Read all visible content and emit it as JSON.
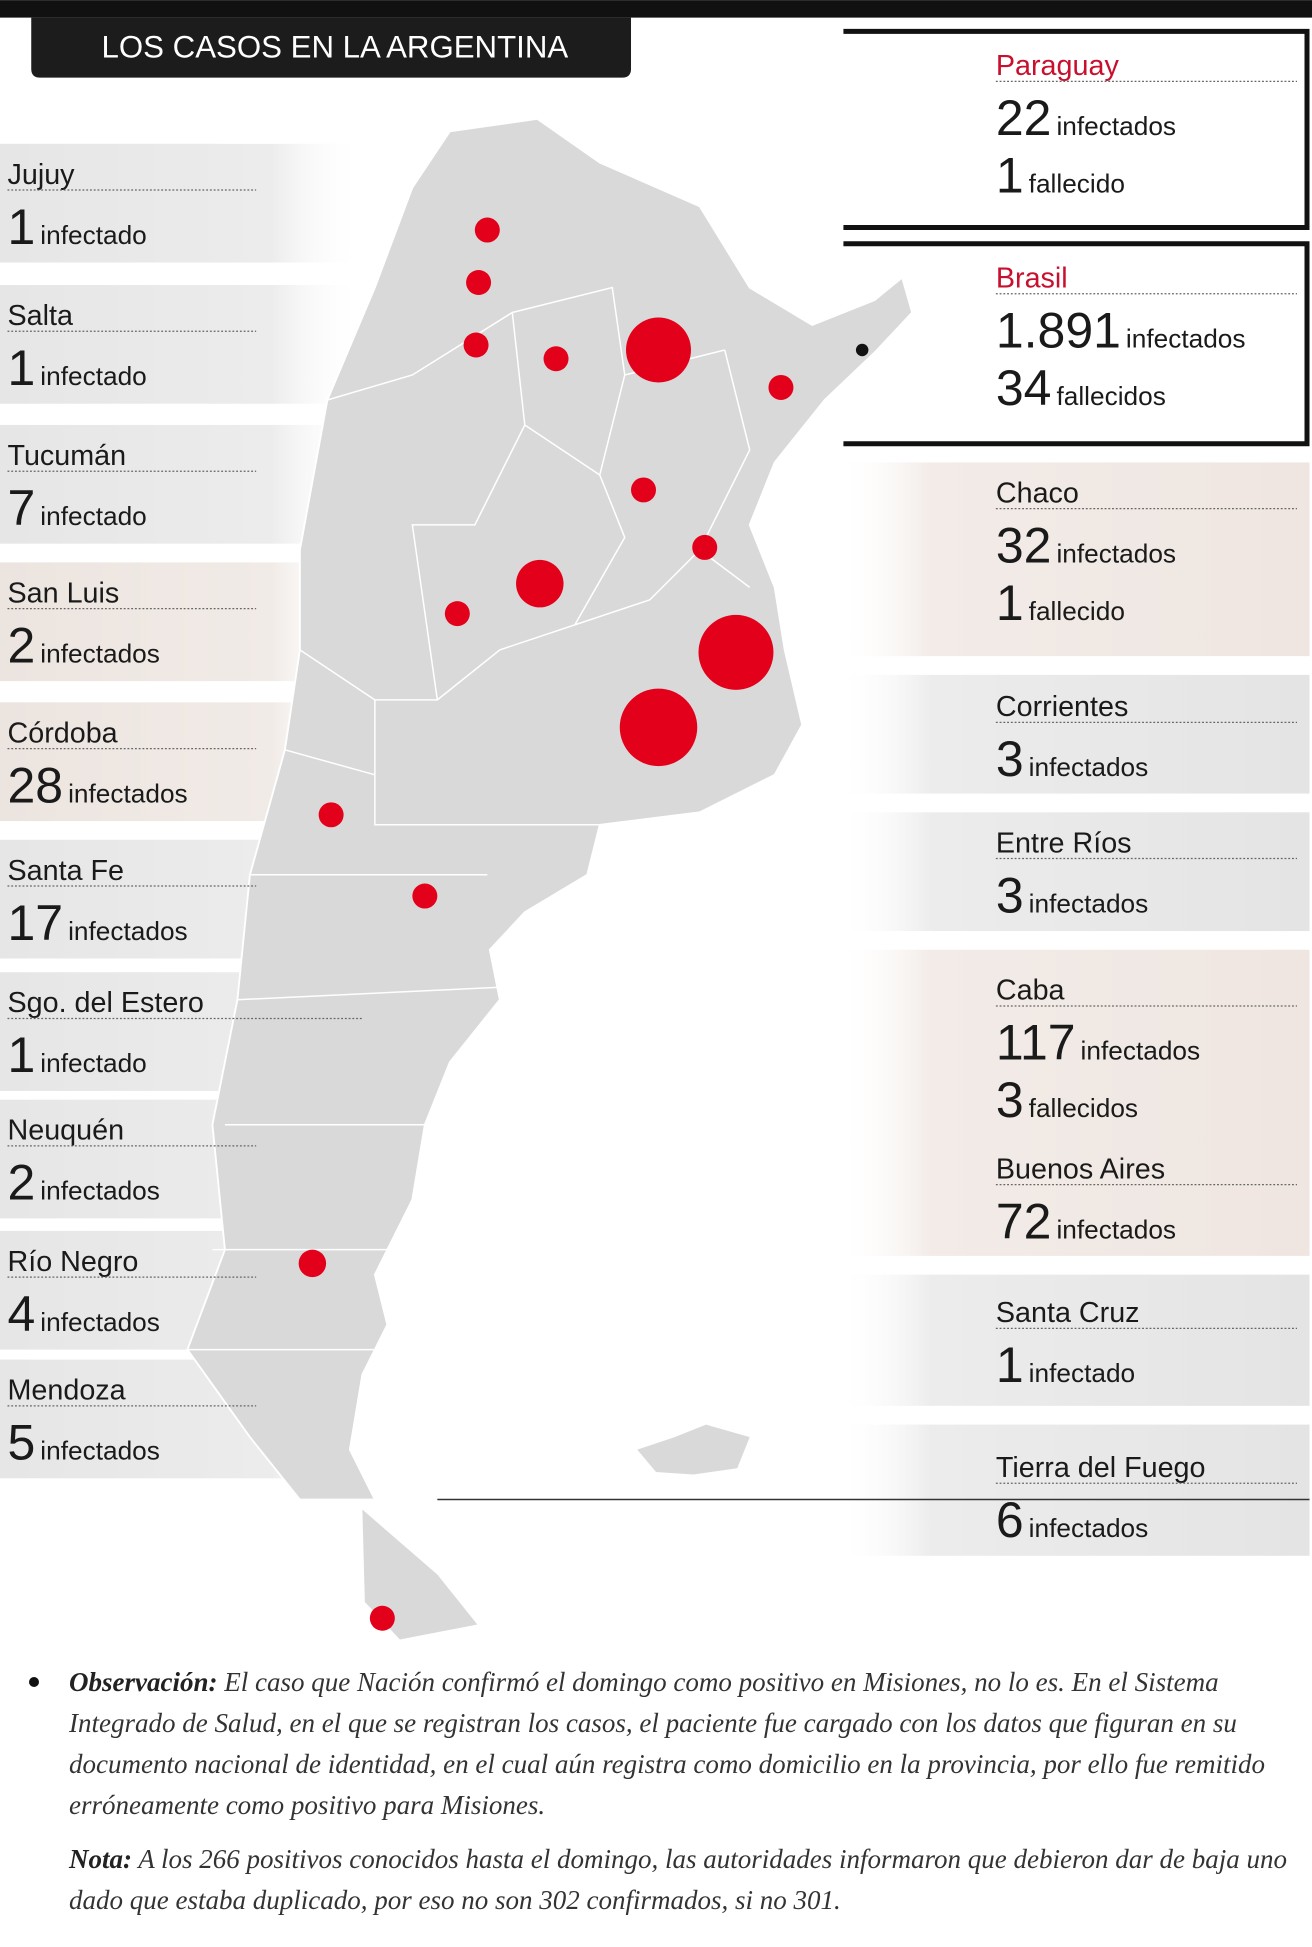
{
  "header": {
    "title": "LOS CASOS EN LA ARGENTINA"
  },
  "left_panels": [
    {
      "name": "Jujuy",
      "count": "1",
      "unit": "infectado"
    },
    {
      "name": "Salta",
      "count": "1",
      "unit": "infectado"
    },
    {
      "name": "Tucumán",
      "count": "7",
      "unit": "infectado"
    },
    {
      "name": "San Luis",
      "count": "2",
      "unit": "infectados"
    },
    {
      "name": "Córdoba",
      "count": "28",
      "unit": "infectados"
    },
    {
      "name": "Santa Fe",
      "count": "17",
      "unit": "infectados"
    },
    {
      "name": "Sgo. del Estero",
      "count": "1",
      "unit": "infectado"
    },
    {
      "name": "Neuquén",
      "count": "2",
      "unit": "infectados"
    },
    {
      "name": "Río Negro",
      "count": "4",
      "unit": "infectados"
    },
    {
      "name": "Mendoza",
      "count": "5",
      "unit": "infectados"
    }
  ],
  "right_panels": [
    {
      "name": "Paraguay",
      "lines": [
        {
          "count": "22",
          "unit": "infectados"
        },
        {
          "count": "1",
          "unit": "fallecido"
        }
      ]
    },
    {
      "name": "Brasil",
      "lines": [
        {
          "count": "1.891",
          "unit": "infectados"
        },
        {
          "count": "34",
          "unit": "fallecidos"
        }
      ]
    },
    {
      "name": "Chaco",
      "lines": [
        {
          "count": "32",
          "unit": "infectados"
        },
        {
          "count": "1",
          "unit": "fallecido"
        }
      ]
    },
    {
      "name": "Corrientes",
      "lines": [
        {
          "count": "3",
          "unit": "infectados"
        }
      ]
    },
    {
      "name": "Entre Ríos",
      "lines": [
        {
          "count": "3",
          "unit": "infectados"
        }
      ]
    },
    {
      "name": "Caba",
      "lines": [
        {
          "count": "117",
          "unit": "infectados"
        },
        {
          "count": "3",
          "unit": "fallecidos"
        }
      ]
    },
    {
      "name": "Buenos Aires",
      "lines": [
        {
          "count": "72",
          "unit": "infectados"
        }
      ]
    },
    {
      "name": "Santa Cruz",
      "lines": [
        {
          "count": "1",
          "unit": "infectado"
        }
      ]
    },
    {
      "name": "Tierra del Fuego",
      "lines": [
        {
          "count": "6",
          "unit": "infectados"
        }
      ]
    }
  ],
  "notes": [
    {
      "label": "Observación:",
      "text": "El caso que Nación confirmó el domingo como positivo en Misiones, no lo es. En el Sistema Integrado de Salud, en el que se registran los casos, el paciente fue cargado con los datos que figuran en su documento nacional de identidad, en el cual aún registra como domicilio en la provincia, por ello fue remitido erróneamente como positivo para Misiones."
    },
    {
      "label": "Nota:",
      "text": "A los 266 positivos conocidos hasta el domingo, las autoridades informaron que debieron dar de baja uno dado que estaba duplicado, por eso no son 302 confirmados, si no 301."
    }
  ]
}
